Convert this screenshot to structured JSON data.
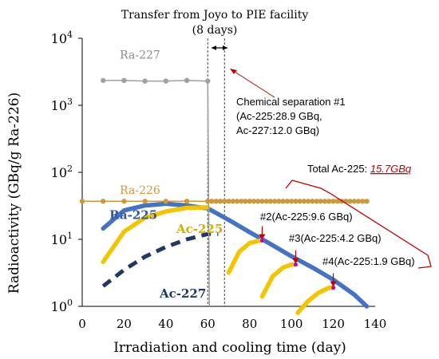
{
  "chart_data": {
    "type": "line",
    "yscale": "log",
    "xlim": [
      0,
      140
    ],
    "ylim": [
      1,
      10000
    ],
    "xlabel": "Irradiation and cooling time (day)",
    "ylabel": "Radioactivity (GBq/g Ra-226)",
    "x_ticks": [
      "0",
      "20",
      "40",
      "60",
      "80",
      "100",
      "120",
      "140"
    ],
    "y_tick_values": [
      1,
      10,
      100,
      1000,
      10000
    ],
    "y_tick_exponents": [
      "0",
      "1",
      "2",
      "3",
      "4"
    ],
    "y_tick_base": "10",
    "grid": false,
    "series": [
      {
        "name": "Ra-227",
        "color": "#a0a0a0",
        "style": "markers-line",
        "points": [
          [
            10,
            2350
          ],
          [
            20,
            2350
          ],
          [
            30,
            2300
          ],
          [
            40,
            2300
          ],
          [
            50,
            2350
          ],
          [
            60,
            2300
          ]
        ]
      },
      {
        "name": "Ra-226",
        "color": "#c99a3a",
        "style": "markers-line",
        "points": [
          [
            0,
            37
          ],
          [
            10,
            37
          ],
          [
            20,
            37
          ],
          [
            30,
            37
          ],
          [
            40,
            37
          ],
          [
            50,
            37
          ],
          [
            60,
            37
          ],
          [
            62,
            37
          ],
          [
            64,
            37
          ],
          [
            66,
            37
          ],
          [
            68,
            37
          ],
          [
            70,
            37
          ],
          [
            72,
            37
          ],
          [
            74,
            37
          ],
          [
            76,
            37
          ],
          [
            78,
            37
          ],
          [
            80,
            37
          ],
          [
            82,
            37
          ],
          [
            84,
            37
          ],
          [
            86,
            37
          ],
          [
            88,
            37
          ],
          [
            90,
            37
          ],
          [
            92,
            37
          ],
          [
            94,
            37
          ],
          [
            96,
            37
          ],
          [
            98,
            37
          ],
          [
            100,
            37
          ],
          [
            102,
            37
          ],
          [
            104,
            37
          ],
          [
            106,
            37
          ],
          [
            108,
            37
          ],
          [
            110,
            37
          ],
          [
            112,
            37
          ],
          [
            114,
            37
          ],
          [
            116,
            37
          ],
          [
            118,
            37
          ],
          [
            120,
            37
          ],
          [
            122,
            37
          ],
          [
            124,
            37
          ],
          [
            126,
            37
          ],
          [
            128,
            37
          ],
          [
            130,
            37
          ],
          [
            132,
            37
          ],
          [
            134,
            37
          ],
          [
            136,
            37
          ]
        ]
      },
      {
        "name": "Ra-225",
        "color": "#4472c4",
        "style": "thick",
        "points": [
          [
            10,
            14.5
          ],
          [
            20,
            27
          ],
          [
            30,
            32
          ],
          [
            40,
            34
          ],
          [
            50,
            32
          ],
          [
            60,
            29
          ],
          [
            70,
            19.5
          ],
          [
            80,
            12.8
          ],
          [
            90,
            8.5
          ],
          [
            100,
            5.6
          ],
          [
            110,
            3.8
          ],
          [
            120,
            2.5
          ],
          [
            130,
            1.5
          ],
          [
            136,
            1
          ]
        ]
      },
      {
        "name": "Ac-225",
        "color": "#f2c500",
        "style": "thick",
        "points": [
          [
            10,
            4.6
          ],
          [
            20,
            13
          ],
          [
            30,
            21
          ],
          [
            40,
            26
          ],
          [
            50,
            29.5
          ],
          [
            60,
            30
          ]
        ]
      },
      {
        "name": "Ac-227",
        "color": "#1f3864",
        "style": "dashed",
        "points": [
          [
            10,
            2
          ],
          [
            20,
            3.5
          ],
          [
            30,
            5.5
          ],
          [
            40,
            7.7
          ],
          [
            50,
            10
          ],
          [
            60,
            12
          ],
          [
            65,
            12
          ]
        ]
      },
      {
        "name": "Ac-225 regrowth 1",
        "color": "#f2c500",
        "style": "thick",
        "points": [
          [
            70,
            3.2
          ],
          [
            75,
            6.5
          ],
          [
            80,
            8.8
          ],
          [
            85,
            9.6
          ],
          [
            86,
            9.6
          ]
        ]
      },
      {
        "name": "Ac-225 regrowth 2",
        "color": "#f2c500",
        "style": "thick",
        "points": [
          [
            86,
            1.4
          ],
          [
            91,
            2.8
          ],
          [
            96,
            3.8
          ],
          [
            100,
            4.2
          ],
          [
            102,
            4.2
          ]
        ]
      },
      {
        "name": "Ac-225 regrowth 3",
        "color": "#f2c500",
        "style": "thick",
        "points": [
          [
            103,
            0.8
          ],
          [
            108,
            1.2
          ],
          [
            113,
            1.6
          ],
          [
            118,
            1.9
          ],
          [
            120,
            1.9
          ]
        ]
      }
    ],
    "drops": [
      {
        "series": "Ra-227",
        "x": 60,
        "y_from": 2300,
        "y_to": 1,
        "color": "#a0a0a0"
      }
    ],
    "vlines": [
      {
        "x": 60,
        "y_from": 1,
        "y_to": 10000
      },
      {
        "x": 68,
        "y_from": 1,
        "y_to": 10000
      }
    ],
    "separation_markers": [
      {
        "x": 86,
        "y": 9.6
      },
      {
        "x": 102,
        "y": 4.2
      },
      {
        "x": 120,
        "y": 1.9
      }
    ],
    "series_labels": [
      {
        "text": "Ra-227",
        "x": 18,
        "y": 5000,
        "color": "#8a8a8a"
      },
      {
        "text": "Ra-226",
        "x": 18,
        "y": 48,
        "color": "#c99a3a"
      },
      {
        "text": "Ra-225",
        "x": 13,
        "y": 20,
        "color": "#2f58a8"
      },
      {
        "text": "Ac-225",
        "x": 45,
        "y": 12.5,
        "color": "#d7ad00"
      },
      {
        "text": "Ac-227",
        "x": 37,
        "y": 1.35,
        "color": "#1f3864"
      }
    ],
    "annotations": {
      "transfer_title": "Transfer from Joyo to PIE facility",
      "transfer_days": "(8 days)",
      "separation_1_title": "Chemical separation #1",
      "separation_1_line1": "(Ac-225:28.9 GBq,",
      "separation_1_line2": "Ac-227:12.0 GBq)",
      "total_prefix": "Total Ac-225: ",
      "total_value": "15.7GBq",
      "sep2": "#2(Ac-225:9.6 GBq)",
      "sep3": "#3(Ac-225:4.2 GBq)",
      "sep4": "#4(Ac-225:1.9 GBq)"
    },
    "colors": {
      "axis": "#000000",
      "red": "#c00000",
      "vline": "#444444"
    }
  }
}
